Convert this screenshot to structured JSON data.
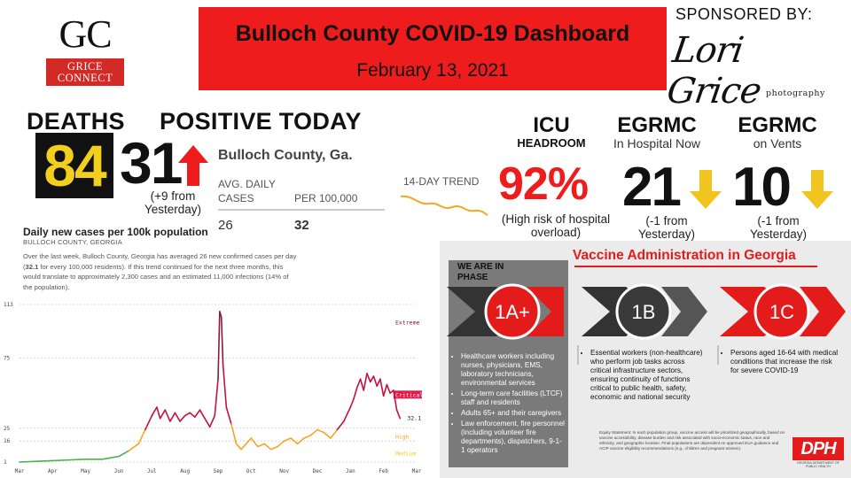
{
  "header": {
    "logo_main": "GC",
    "logo_band_line1": "GRICE",
    "logo_band_line2": "CONNECT",
    "title": "Bulloch County COVID-19 Dashboard",
    "date": "February 13, 2021",
    "sponsor_label": "SPONSORED BY:",
    "sponsor_script": "Lori Grice",
    "sponsor_sub": "photography"
  },
  "stats": {
    "deaths_label": "DEATHS",
    "deaths_value": "84",
    "positive_label": "POSITIVE TODAY",
    "positive_value": "31",
    "positive_change_line1": "(+9 from",
    "positive_change_line2": "Yesterday)",
    "county": "Bulloch County, Ga.",
    "avg_label_line1": "AVG. DAILY",
    "avg_label_line2": "CASES",
    "per_label": "PER 100,000",
    "avg_value": "26",
    "per_value": "32",
    "trend_label": "14-DAY TREND",
    "icu_label": "ICU",
    "icu_sub": "HEADROOM",
    "icu_value": "92%",
    "icu_note_line1": "(High risk of hospital",
    "icu_note_line2": "overload)",
    "hosp_label": "EGRMC",
    "hosp_sub": "In Hospital Now",
    "hosp_value": "21",
    "hosp_note_line1": "(-1 from",
    "hosp_note_line2": "Yesterday)",
    "vent_label": "EGRMC",
    "vent_sub": "on Vents",
    "vent_value": "10",
    "vent_note_line1": "(-1 from",
    "vent_note_line2": "Yesterday)"
  },
  "chart_section": {
    "title": "Daily new cases per 100k population",
    "subtitle": "BULLOCH COUNTY, GEORGIA",
    "desc_1": "Over the last week, Bulloch County, Georgia has averaged 26 new confirmed cases per day (",
    "desc_bold": "32.1",
    "desc_2": " for every 100,000 residents). If this trend continued for the next three months, this would translate to approximately 2,300 cases and an estimated 11,000 infections (14% of the population)."
  },
  "chart_data": {
    "type": "line",
    "title": "Daily new cases per 100k population",
    "y_ticks": [
      1,
      16,
      25,
      75,
      113
    ],
    "ylim": [
      1,
      113
    ],
    "x_tick_labels": [
      "Mar",
      "Apr",
      "May",
      "Jun",
      "Jul",
      "Aug",
      "Sep",
      "Oct",
      "Nov",
      "Dec",
      "Jan",
      "Feb",
      "Mar"
    ],
    "x_unit": "month index (0 = Mar 2020)",
    "zones": [
      {
        "name": "Extreme",
        "color": "#8b1a3a"
      },
      {
        "name": "Critical",
        "color": "#e8174a"
      },
      {
        "name": "High",
        "color": "#f5a623"
      },
      {
        "name": "Medium",
        "color": "#f2cf1e"
      }
    ],
    "last_value_label": "32.1",
    "series": [
      {
        "x": [
          0,
          0.5,
          1,
          1.5,
          2,
          2.5,
          3,
          3.3,
          3.6,
          3.8,
          4.0,
          4.15,
          4.25,
          4.4,
          4.55,
          4.7,
          4.85,
          5.0,
          5.15,
          5.3,
          5.45,
          5.6,
          5.75,
          5.9,
          6.0,
          6.05,
          6.1,
          6.15,
          6.25,
          6.4,
          6.55,
          6.7,
          6.85,
          7.0,
          7.2,
          7.4,
          7.6,
          7.8,
          8.0,
          8.2,
          8.4,
          8.6,
          8.8,
          9.0,
          9.2,
          9.4,
          9.6,
          9.8,
          10.0,
          10.1,
          10.2,
          10.3,
          10.4,
          10.5,
          10.6,
          10.7,
          10.8,
          10.9,
          11.0,
          11.1,
          11.2,
          11.3,
          11.4,
          11.5
        ],
        "values": [
          1,
          1.5,
          2,
          2.5,
          3,
          3,
          5,
          9,
          14,
          24,
          34,
          40,
          32,
          38,
          30,
          36,
          30,
          34,
          36,
          33,
          38,
          32,
          26,
          34,
          60,
          108,
          104,
          70,
          40,
          28,
          14,
          10,
          14,
          18,
          12,
          14,
          10,
          12,
          16,
          18,
          14,
          18,
          20,
          24,
          22,
          18,
          24,
          30,
          40,
          46,
          54,
          60,
          52,
          64,
          58,
          62,
          55,
          60,
          48,
          56,
          50,
          52,
          38,
          32
        ]
      }
    ]
  },
  "vaccine": {
    "title": "Vaccine Administration in Georgia",
    "we_are_line1": "WE ARE IN",
    "we_are_line2": "PHASE",
    "phase_1": "1A+",
    "phase_2": "1B",
    "phase_3": "1C",
    "phase_1_items": [
      "Healthcare workers including nurses, physicians, EMS, laboratory technicians, environmental services",
      "Long-term care facilities (LTCF) staff and residents",
      "Adults 65+ and their caregivers",
      "Law enforcement, fire personnel (including volunteer fire departments), dispatchers, 9-1-1 operators"
    ],
    "phase_2_items": [
      "Essential workers (non-healthcare) who perform job tasks across critical infrastructure sectors, ensuring continuity of functions critical to public health, safety, economic and national security"
    ],
    "phase_3_items": [
      "Persons aged 16-64 with medical conditions that increase the risk for severe COVID-19"
    ],
    "fine_print": "Equity Statement: In each population group, vaccine access will be prioritized geographically, based on vaccine accessibility, disease burden and risk associated with socio-economic status, race and ethnicity, and geographic location. Final populations are dependent on approved EUA guidance and ACIP vaccine eligibility recommendations (e.g., children and pregnant women).",
    "dph_logo": "DPH",
    "dph_caption": "GEORGIA DEPARTMENT OF PUBLIC HEALTH",
    "colors": {
      "accent": "#e41b1b",
      "dark": "#3a3a3a",
      "panel": "#ebebeb"
    }
  }
}
